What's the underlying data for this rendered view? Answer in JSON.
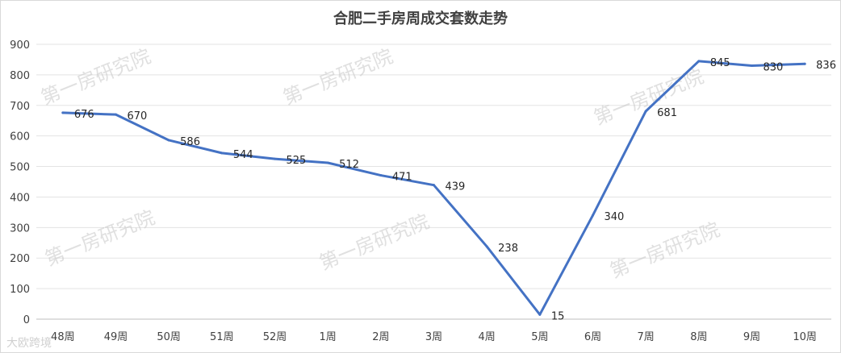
{
  "chart_data": {
    "type": "line",
    "title": "合肥二手房周成交套数走势",
    "categories": [
      "48周",
      "49周",
      "50周",
      "51周",
      "52周",
      "1周",
      "2周",
      "3周",
      "4周",
      "5周",
      "6周",
      "7周",
      "8周",
      "9周",
      "10周"
    ],
    "series": [
      {
        "values": [
          676,
          670,
          586,
          544,
          525,
          512,
          471,
          439,
          238,
          15,
          340,
          681,
          845,
          830,
          836
        ]
      }
    ],
    "y_ticks": [
      "0",
      "100",
      "200",
      "300",
      "400",
      "500",
      "600",
      "700",
      "800",
      "900"
    ],
    "ylim": [
      0,
      900
    ],
    "grid": true,
    "line_color": "#4472c4"
  },
  "watermarks": [
    "第一房研究院",
    "第一房研究院",
    "第一房研究院",
    "第一房研究院",
    "第一房研究院",
    "第一房研究院"
  ],
  "corner_watermark": "大欧跨境"
}
